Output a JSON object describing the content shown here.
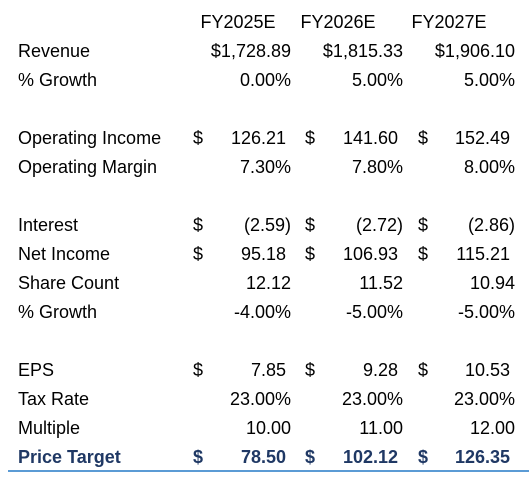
{
  "table": {
    "header": [
      "FY2025E",
      "FY2026E",
      "FY2027E"
    ],
    "sections": [
      {
        "rows": [
          {
            "label": "Revenue",
            "cells": [
              "$1,728.89",
              "$1,815.33",
              "$1,906.10"
            ]
          },
          {
            "label": "% Growth",
            "cells": [
              "0.00%",
              "5.00%",
              "5.00%"
            ]
          }
        ]
      },
      {
        "rows": [
          {
            "label": "Operating Income",
            "cells": [
              {
                "symbol": "$",
                "amount": "126.21"
              },
              {
                "symbol": "$",
                "amount": "141.60"
              },
              {
                "symbol": "$",
                "amount": "152.49"
              }
            ]
          },
          {
            "label": "Operating Margin",
            "cells": [
              "7.30%",
              "7.80%",
              "8.00%"
            ]
          }
        ]
      },
      {
        "rows": [
          {
            "label": "Interest",
            "cells": [
              {
                "symbol": "$",
                "amount": "(2.59)"
              },
              {
                "symbol": "$",
                "amount": "(2.72)"
              },
              {
                "symbol": "$",
                "amount": "(2.86)"
              }
            ]
          },
          {
            "label": "Net Income",
            "cells": [
              {
                "symbol": "$",
                "amount": "95.18"
              },
              {
                "symbol": "$",
                "amount": "106.93"
              },
              {
                "symbol": "$",
                "amount": "115.21"
              }
            ]
          },
          {
            "label": "Share Count",
            "cells": [
              "12.12",
              "11.52",
              "10.94"
            ]
          },
          {
            "label": "% Growth",
            "cells": [
              "-4.00%",
              "-5.00%",
              "-5.00%"
            ]
          }
        ]
      },
      {
        "rows": [
          {
            "label": "EPS",
            "cells": [
              {
                "symbol": "$",
                "amount": "7.85"
              },
              {
                "symbol": "$",
                "amount": "9.28"
              },
              {
                "symbol": "$",
                "amount": "10.53"
              }
            ]
          },
          {
            "label": "Tax Rate",
            "cells": [
              "23.00%",
              "23.00%",
              "23.00%"
            ]
          },
          {
            "label": "Multiple",
            "cells": [
              "10.00",
              "11.00",
              "12.00"
            ]
          },
          {
            "label": "Price Target",
            "cells": [
              {
                "symbol": "$",
                "amount": "78.50"
              },
              {
                "symbol": "$",
                "amount": "102.12"
              },
              {
                "symbol": "$",
                "amount": "126.35"
              }
            ]
          }
        ]
      }
    ]
  }
}
